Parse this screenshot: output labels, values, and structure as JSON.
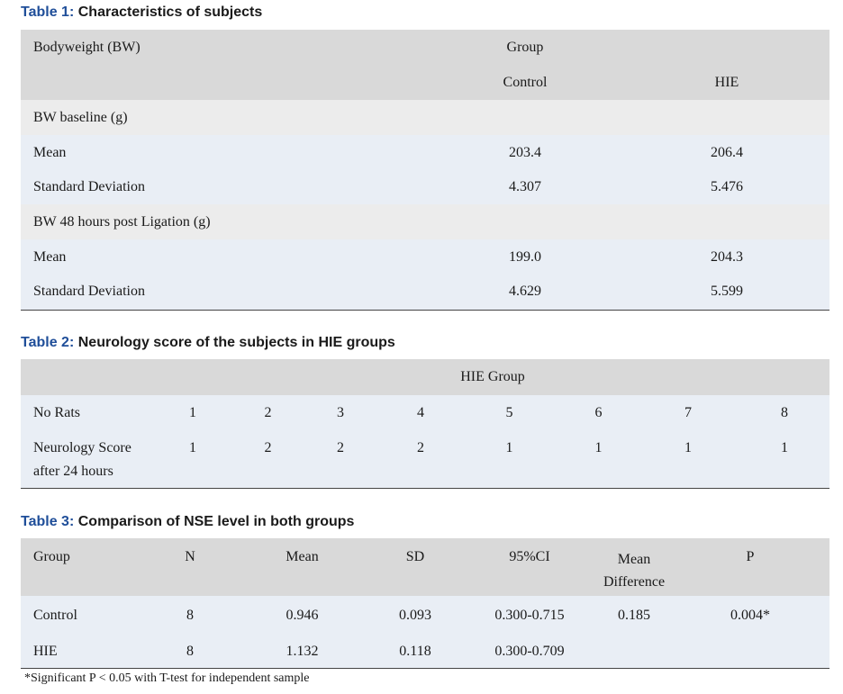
{
  "table1": {
    "label": "Table 1:",
    "title": "Characteristics of subjects",
    "col0_header": "Bodyweight (BW)",
    "group_header": "Group",
    "col_control": "Control",
    "col_hie": "HIE",
    "sections": [
      {
        "title": "BW baseline (g)",
        "rows": [
          {
            "label": "Mean",
            "control": "203.4",
            "hie": "206.4"
          },
          {
            "label": "Standard Deviation",
            "control": "4.307",
            "hie": "5.476"
          }
        ]
      },
      {
        "title": "BW 48 hours post Ligation (g)",
        "rows": [
          {
            "label": "Mean",
            "control": "199.0",
            "hie": "204.3"
          },
          {
            "label": "Standard Deviation",
            "control": "4.629",
            "hie": "5.599"
          }
        ]
      }
    ]
  },
  "table2": {
    "label": "Table 2:",
    "title": "Neurology score of the subjects in HIE groups",
    "group_header": "HIE Group",
    "row1_label": "No Rats",
    "rats": [
      "1",
      "2",
      "3",
      "4",
      "5",
      "6",
      "7",
      "8"
    ],
    "row2_label_line1": "Neurology Score",
    "row2_label_line2": "after 24 hours",
    "scores": [
      "1",
      "2",
      "2",
      "2",
      "1",
      "1",
      "1",
      "1"
    ]
  },
  "table3": {
    "label": "Table 3:",
    "title": "Comparison of NSE level in both groups",
    "headers": {
      "group": "Group",
      "n": "N",
      "mean": "Mean",
      "sd": "SD",
      "ci": "95%CI",
      "mean_diff_line1": "Mean",
      "mean_diff_line2": "Difference",
      "p": "P"
    },
    "rows": [
      {
        "group": "Control",
        "n": "8",
        "mean": "0.946",
        "sd": "0.093",
        "ci": "0.300-0.715",
        "mean_diff": "0.185",
        "p": "0.004*"
      },
      {
        "group": "HIE",
        "n": "8",
        "mean": "1.132",
        "sd": "0.118",
        "ci": "0.300-0.709",
        "mean_diff": "",
        "p": ""
      }
    ],
    "footnote": "*Significant P < 0.05 with T-test for independent sample"
  }
}
